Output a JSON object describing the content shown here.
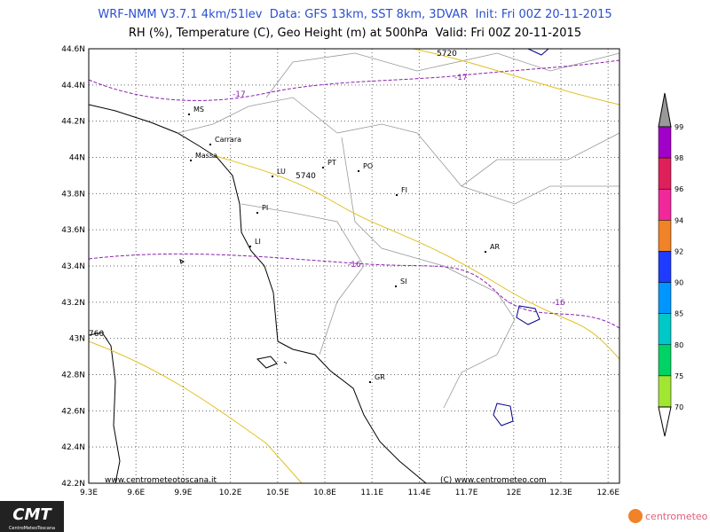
{
  "header": {
    "line1": "WRF-NMM V3.7.1 4km/51lev  Data: GFS 13km, SST 8km, 3DVAR  Init: Fri 00Z 20-11-2015",
    "line2": "RH (%), Temperature (C), Geo Height (m) at 500hPa  Valid: Fri 00Z 20-11-2015"
  },
  "map": {
    "lon_labels": [
      "9.3E",
      "9.6E",
      "9.9E",
      "10.2E",
      "10.5E",
      "10.8E",
      "11.1E",
      "11.4E",
      "11.7E",
      "12E",
      "12.3E",
      "12.6E"
    ],
    "lat_labels": [
      "44.6N",
      "44.4N",
      "44.2N",
      "44N",
      "43.8N",
      "43.6N",
      "43.4N",
      "43.2N",
      "43N",
      "42.8N",
      "42.6N",
      "42.4N",
      "42.2N"
    ],
    "cities": [
      "MS",
      "Carrara",
      "Massa",
      "LU",
      "PT",
      "PO",
      "FI",
      "PI",
      "LI",
      "AR",
      "SI",
      "GR"
    ],
    "contour_labels": [
      "5720",
      "-17",
      "-17",
      "5740",
      "-16",
      "-16",
      "760"
    ]
  },
  "colorbar": {
    "labels": [
      "99",
      "98",
      "96",
      "94",
      "92",
      "90",
      "85",
      "80",
      "75",
      "70"
    ],
    "colors": [
      "#a000c8",
      "#e0205a",
      "#f0289b",
      "#f08228",
      "#1e3cff",
      "#0096ff",
      "#00c8c8",
      "#00d264",
      "#a0e632"
    ]
  },
  "footer": {
    "watermark_left": "www.centrometeotoscana.it",
    "watermark_right": "(C) www.centrometeo.com",
    "logo_left": "CMT",
    "logo_left_sub": "CentroMeteoToscana",
    "logo_right": "centrometeo"
  }
}
